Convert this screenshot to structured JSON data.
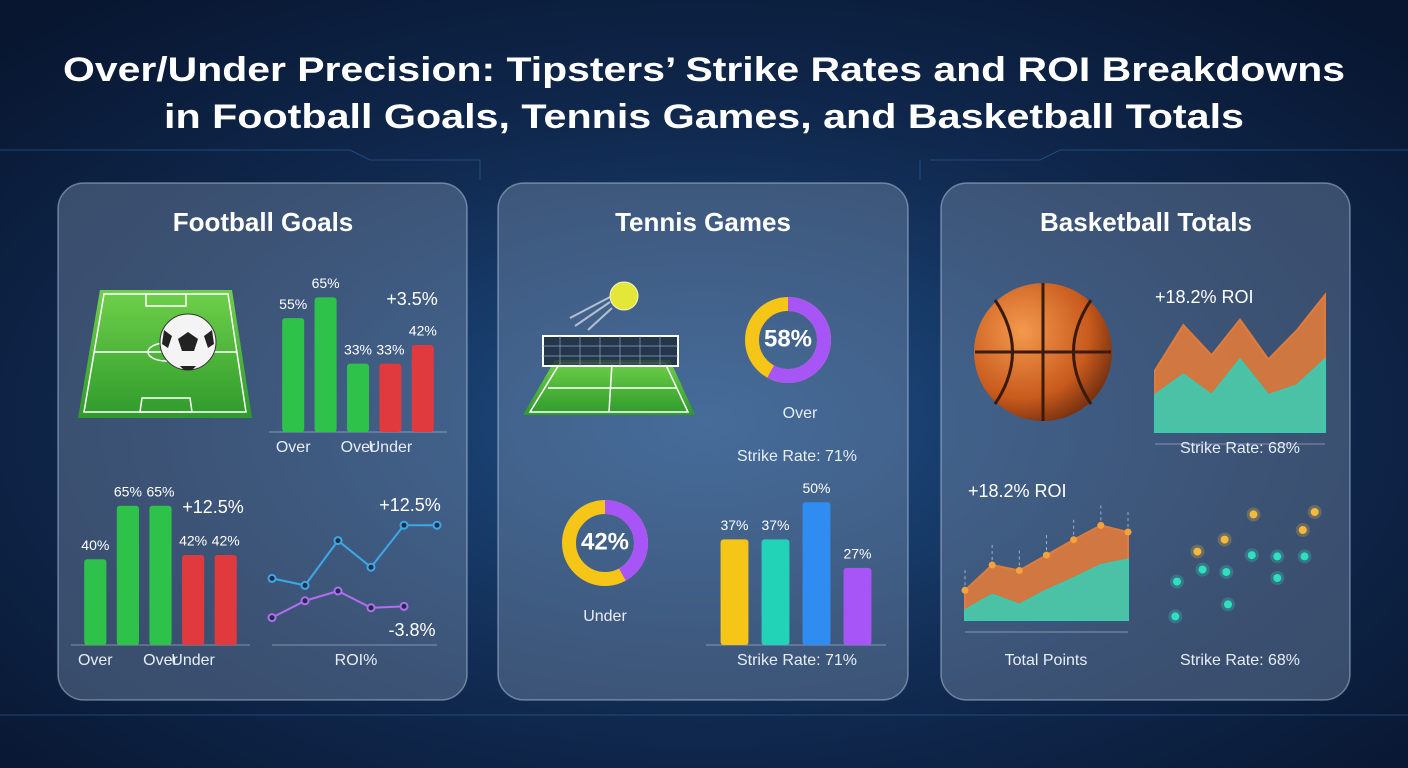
{
  "title_lines": [
    "Over/Under Precision: Tipsters’ Strike Rates and ROI Breakdowns",
    "in Football Goals, Tennis Games, and Basketball Totals"
  ],
  "panels": [
    {
      "title": "Football Goals"
    },
    {
      "title": "Tennis Games"
    },
    {
      "title": "Basketball Totals"
    }
  ],
  "chart_data": [
    {
      "type": "bar",
      "categories": [
        "Over",
        null,
        "Over",
        "Under",
        null
      ],
      "values": [
        55,
        65,
        33,
        33,
        42
      ],
      "value_labels": [
        "55%",
        "65%",
        "33%",
        "33%",
        "42%"
      ],
      "colors": [
        "#2fc24a",
        "#2fc24a",
        "#2fc24a",
        "#e0393e",
        "#e0393e"
      ],
      "ylim": [
        0,
        70
      ],
      "annotation": "+3.5%"
    },
    {
      "type": "bar",
      "categories": [
        "Over",
        null,
        "Over",
        "Under",
        null
      ],
      "values": [
        40,
        65,
        65,
        42,
        42
      ],
      "value_labels": [
        "40%",
        "65%",
        "65%",
        "42%",
        "42%"
      ],
      "colors": [
        "#2fc24a",
        "#2fc24a",
        "#2fc24a",
        "#e0393e",
        "#e0393e"
      ],
      "ylim": [
        0,
        70
      ],
      "annotation": "+12.5%"
    },
    {
      "type": "line",
      "x": [
        0,
        1,
        2,
        3,
        4,
        5
      ],
      "xlim": [
        0,
        5
      ],
      "ylim": [
        0,
        10
      ],
      "series": [
        {
          "color": "#3ba9e6",
          "values": [
            4.4,
            3.9,
            7.1,
            5.2,
            8.2,
            8.2
          ]
        },
        {
          "color": "#b36ef0",
          "values": [
            1.6,
            2.8,
            3.5,
            2.3,
            2.4,
            null
          ]
        }
      ],
      "annotations": [
        "+12.5%",
        "-3.8%"
      ],
      "xlabel": "ROI%"
    },
    {
      "type": "donut",
      "values": [
        58
      ],
      "value_labels": [
        "58%"
      ],
      "label": "Over",
      "colors": [
        "#a855f7",
        "#f5c518"
      ]
    },
    {
      "type": "donut",
      "values": [
        42
      ],
      "value_labels": [
        "42%"
      ],
      "label": "Under",
      "colors": [
        "#a855f7",
        "#f5c518"
      ]
    },
    {
      "type": "bar",
      "categories": [
        null,
        null,
        null,
        null
      ],
      "values": [
        37,
        37,
        50,
        27
      ],
      "value_labels": [
        "37%",
        "37%",
        "50%",
        "27%"
      ],
      "colors": [
        "#f5c518",
        "#22d3b8",
        "#2f8cf0",
        "#a855f7"
      ],
      "ylim": [
        0,
        55
      ],
      "subtitle": "Strike Rate: 71%",
      "caption": "Strike Rate: 71%"
    },
    {
      "type": "area",
      "x": [
        0,
        1,
        2,
        3,
        4,
        5,
        6
      ],
      "xlim": [
        0,
        6
      ],
      "ylim": [
        0,
        10
      ],
      "series": [
        {
          "color": "#e07b3c",
          "values": [
            4.5,
            7.8,
            5.6,
            8.2,
            5.3,
            7.4,
            10.0
          ]
        },
        {
          "color": "#3cc9b0",
          "values": [
            2.7,
            4.2,
            2.7,
            5.3,
            2.7,
            3.4,
            5.3
          ]
        }
      ],
      "annotation": "+18.2% ROI",
      "caption": "Strike Rate: 68%"
    },
    {
      "type": "area",
      "x": [
        0,
        1,
        2,
        3,
        4,
        5,
        6
      ],
      "xlim": [
        0,
        6
      ],
      "ylim": [
        0,
        10
      ],
      "markers": true,
      "series": [
        {
          "color": "#e07b3c",
          "values": [
            2.7,
            5.0,
            4.5,
            5.9,
            7.3,
            8.6,
            8.0
          ]
        },
        {
          "color": "#3cc9b0",
          "values": [
            0.9,
            2.3,
            1.4,
            2.7,
            3.8,
            5.0,
            5.5
          ]
        }
      ],
      "annotation": "+18.2% ROI",
      "caption": "Total Points"
    },
    {
      "type": "scatter",
      "xlim": [
        0,
        10
      ],
      "ylim": [
        0,
        10
      ],
      "series": [
        {
          "color": "#f2b93b",
          "x": [
            5.5,
            3.8,
            2.2,
            8.4,
            9.1
          ],
          "values": [
            8.8,
            6.7,
            5.7,
            7.5,
            9.0
          ]
        },
        {
          "color": "#2fe0c0",
          "x": [
            1.0,
            2.5,
            4.0,
            3.9,
            5.4,
            6.9,
            8.5,
            6.9,
            0.9
          ],
          "values": [
            3.2,
            4.2,
            1.3,
            4.0,
            5.4,
            5.3,
            5.3,
            3.5,
            0.3
          ]
        }
      ],
      "caption": "Strike Rate: 68%"
    }
  ]
}
